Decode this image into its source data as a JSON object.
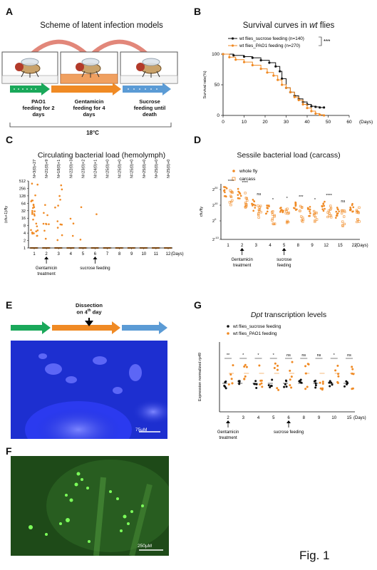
{
  "colors": {
    "orange": "#f08a24",
    "black": "#111111",
    "green": "#1aa85a",
    "blue": "#5b9bd5",
    "arrow": "#e2877a",
    "fluoBlue": "#1d2fd0",
    "fluoGreen": "#1e4a18"
  },
  "panels": {
    "A": {
      "label": "A",
      "title": "Scheme of latent infection models",
      "steps": [
        {
          "label": "PAO1\nfeeding for 2\ndays"
        },
        {
          "label": "Gentamicin\nfeeding for 4\ndays"
        },
        {
          "label": "Sucrose\nfeeding until\ndeath"
        }
      ],
      "temperature": "18°C"
    },
    "B": {
      "label": "B",
      "title_prefix": "Survival curves in ",
      "title_italic": "wt",
      "title_suffix": " flies",
      "significance": "***"
    },
    "C": {
      "label": "C",
      "title": "Circulating bacterial load (hemolymph)",
      "gentamicin": "Gentamicin\ntreatment",
      "sucrose": "sucrose feeding"
    },
    "D": {
      "label": "D",
      "title": "Sessile bacterial load (carcass)",
      "gentamicin": "Gentamicin\ntreatment",
      "sucrose": "sucrose\nfeeding"
    },
    "E": {
      "label": "E",
      "dissection": "Dissection\non 4th day",
      "scalebar": "75µM"
    },
    "F": {
      "label": "F",
      "scalebar": "250µM"
    },
    "G": {
      "label": "G",
      "title_italic": "Dpt",
      "title_suffix": " transcription levels",
      "gentamicin": "Gentamicin\ntreatment",
      "sucrose": "sucrose feeding"
    }
  },
  "figure_label": "Fig. 1",
  "chart_data": [
    {
      "panel": "B",
      "type": "line",
      "xlabel": "(Days)",
      "ylabel": "Survival rate(%)",
      "xlim": [
        0,
        60
      ],
      "ylim": [
        0,
        100
      ],
      "xticks": [
        0,
        10,
        20,
        30,
        40,
        50,
        60
      ],
      "yticks": [
        0,
        50,
        100
      ],
      "legend_position": "top",
      "series": [
        {
          "name": "wt flies_sucrose feeding (n=140)",
          "color": "#111111",
          "x": [
            0,
            5,
            10,
            14,
            18,
            22,
            25,
            27,
            28,
            30,
            32,
            34,
            36,
            38,
            40,
            42,
            44,
            46,
            48
          ],
          "y": [
            100,
            98,
            96,
            94,
            90,
            86,
            80,
            72,
            60,
            45,
            38,
            32,
            27,
            22,
            18,
            15,
            14,
            13,
            13
          ]
        },
        {
          "name": "wt flies_PAO1 feeding (n=270)",
          "color": "#f08a24",
          "x": [
            0,
            3,
            6,
            10,
            14,
            18,
            21,
            24,
            26,
            28,
            30,
            32,
            34,
            36,
            38,
            40,
            42,
            44,
            46,
            48
          ],
          "y": [
            100,
            95,
            91,
            87,
            82,
            76,
            70,
            65,
            58,
            50,
            45,
            38,
            30,
            25,
            18,
            12,
            7,
            3,
            1,
            0
          ]
        }
      ]
    },
    {
      "panel": "C",
      "type": "scatter",
      "xlabel": "(Days)",
      "ylabel": "(cfu+1)/fly",
      "categories": [
        "1",
        "2",
        "3",
        "4",
        "5",
        "6",
        "7",
        "8",
        "9",
        "10",
        "11",
        "12"
      ],
      "yticks": [
        "1",
        "2",
        "4",
        "8",
        "16",
        "32",
        "64",
        "128",
        "256",
        "512"
      ],
      "annotations": [
        "N=3(0)+27",
        "N=21(0)+9",
        "N=18(0)+12",
        "N=22(0)+3",
        "N=23(0)+2",
        "N=24(0)+1",
        "N=25(0)+0",
        "N=25(0)+0",
        "N=25(0)+0",
        "N=25(0)+0",
        "N=25(0)+0",
        "N=25(0)+0"
      ]
    },
    {
      "panel": "D",
      "type": "scatter",
      "xlabel": "(Days)",
      "ylabel": "cfu/fly",
      "categories": [
        "1",
        "2",
        "3",
        "4",
        "5",
        "8",
        "9",
        "12",
        "15",
        "22"
      ],
      "legend": [
        "whole fly",
        "carcass"
      ],
      "significance": [
        "****",
        "****",
        "ns",
        "*",
        "*",
        "***",
        "*",
        "****",
        "ns"
      ]
    },
    {
      "panel": "G",
      "type": "scatter",
      "xlabel": "(Days)",
      "ylabel": "Expression normalized rp49",
      "categories": [
        "2",
        "3",
        "4",
        "5",
        "6",
        "8",
        "9",
        "10",
        "15"
      ],
      "legend": [
        "wt flies_sucrose feeding",
        "wt flies_PAO1 feeding"
      ],
      "significance": [
        "**",
        "*",
        "*",
        "*",
        "ns",
        "ns",
        "ns",
        "*",
        "ns"
      ]
    }
  ]
}
